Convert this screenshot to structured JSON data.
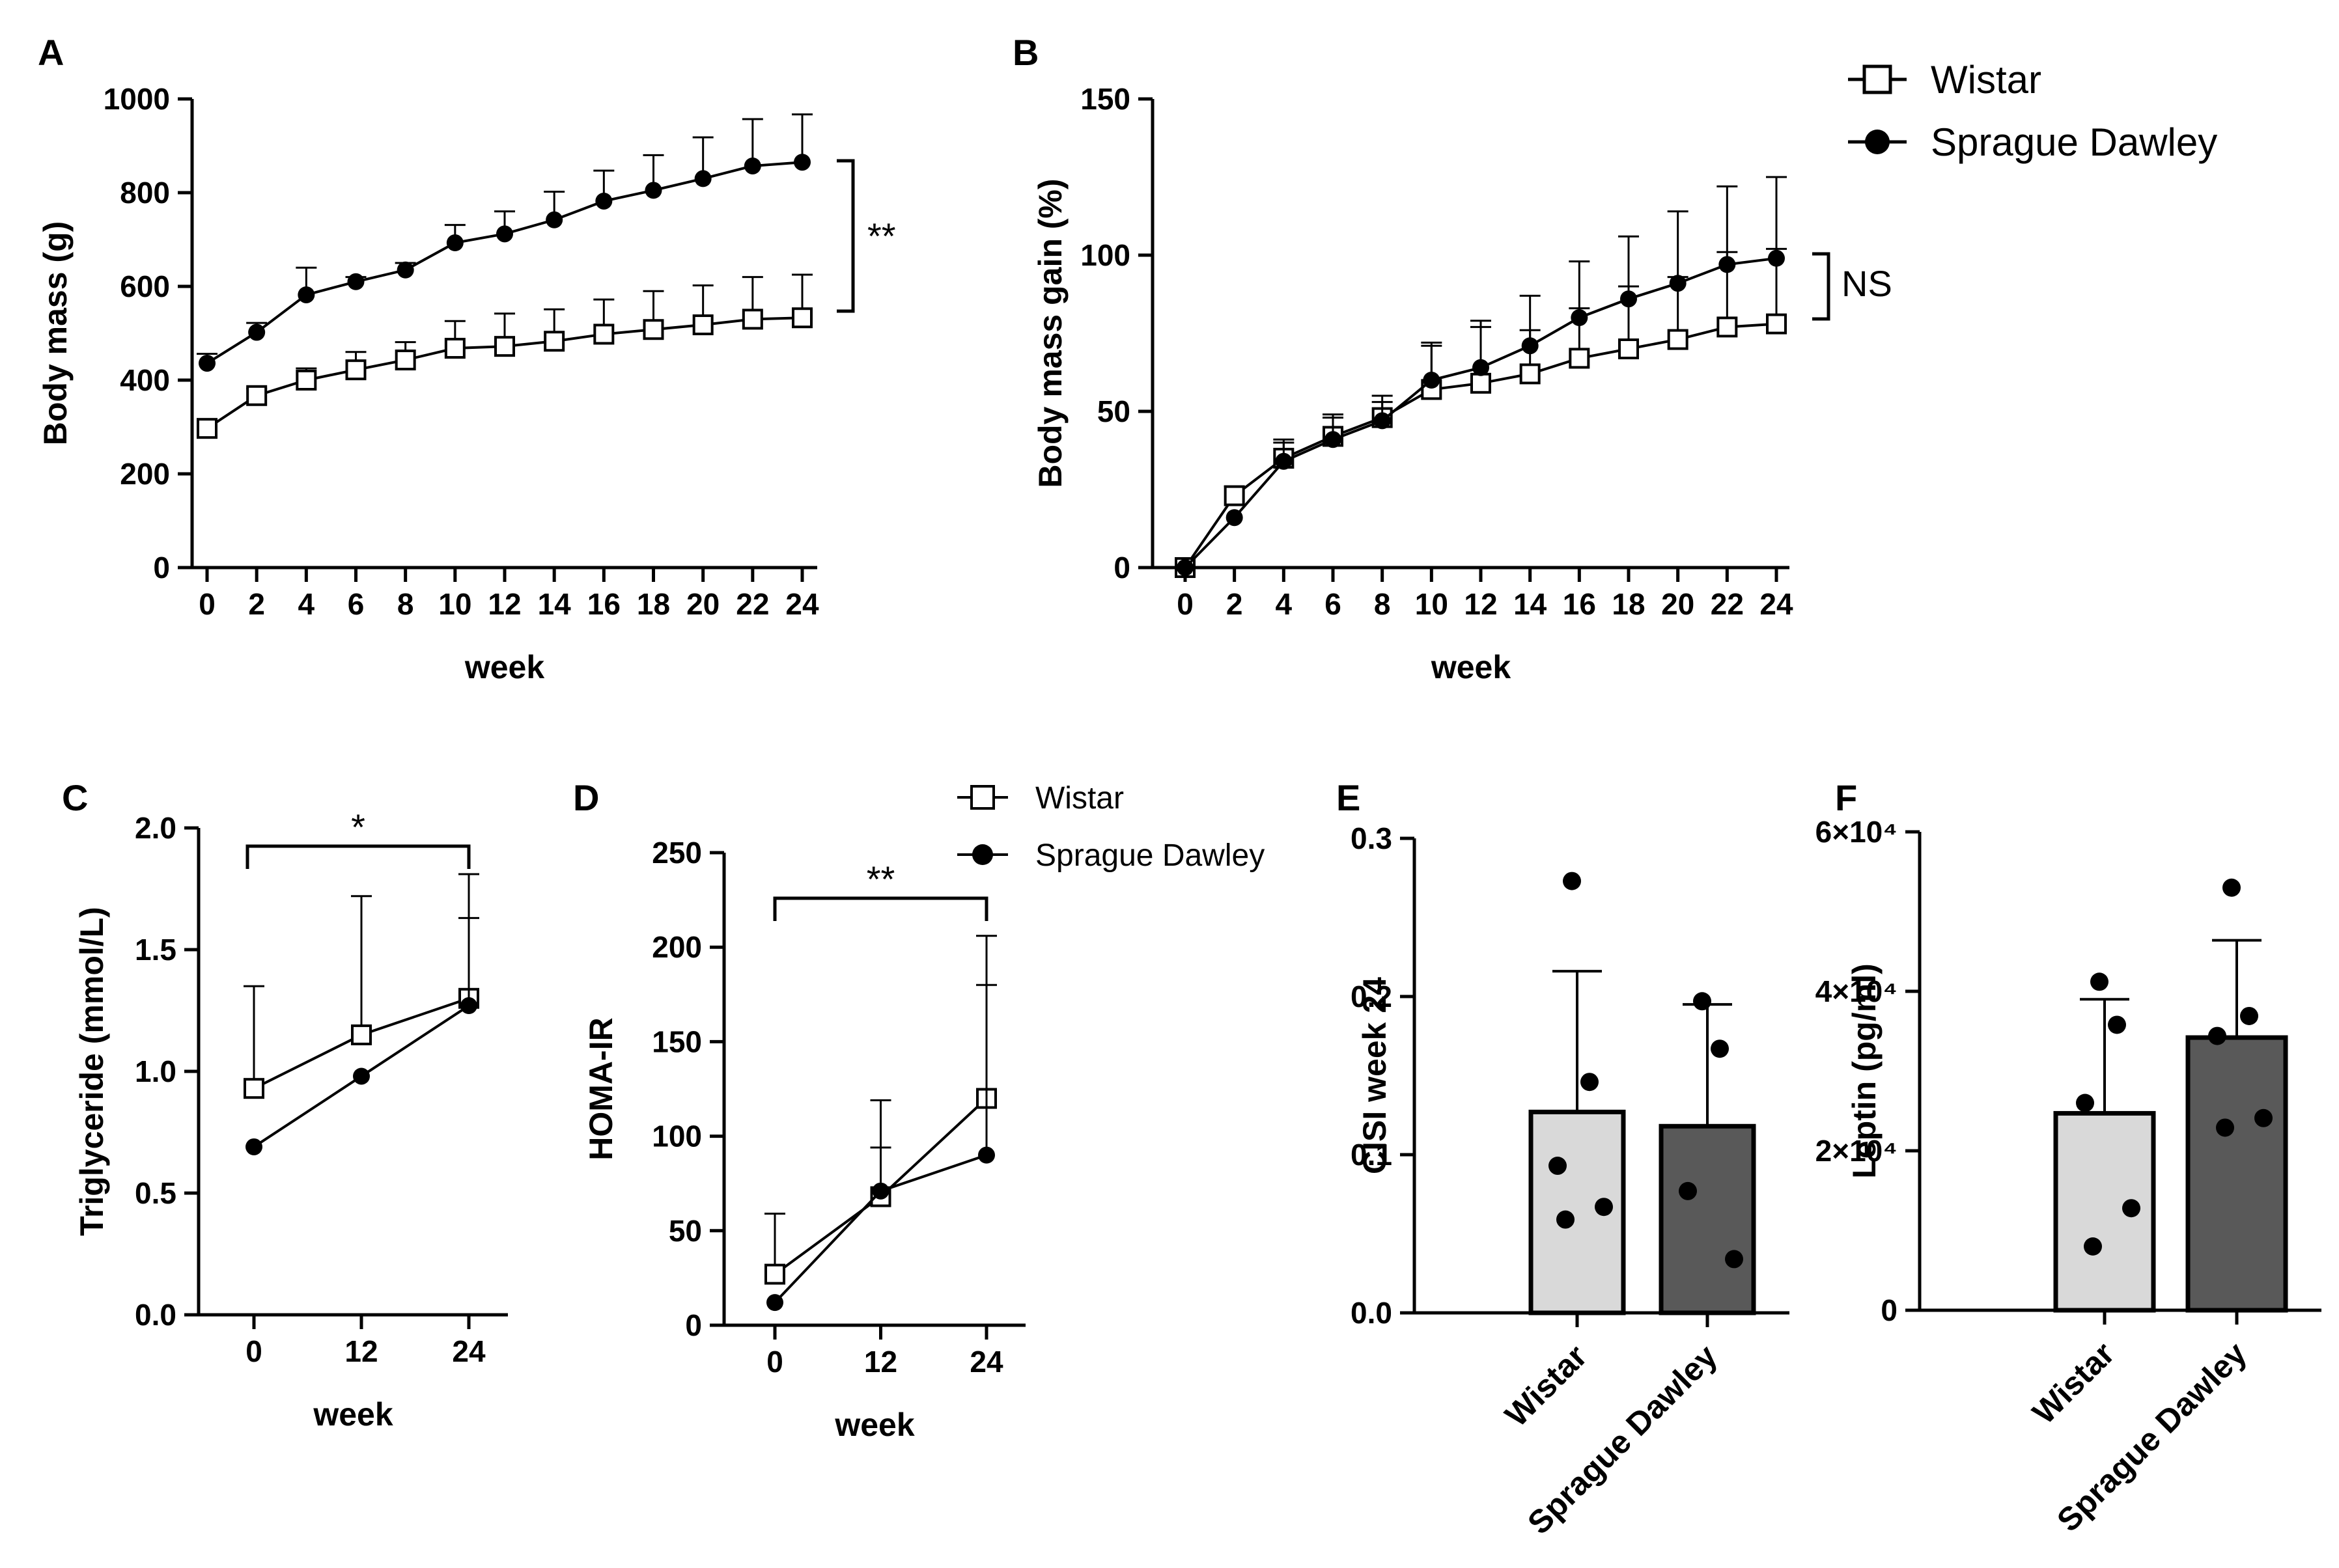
{
  "figure": {
    "background": "#ffffff",
    "ink": "#000000"
  },
  "colors": {
    "wistar_bar": "#d9d9d9",
    "sd_bar": "#595959",
    "marker": "#000000"
  },
  "legend_main": {
    "series": [
      "Wistar",
      "Sprague Dawley"
    ]
  },
  "legend_small": {
    "series": [
      "Wistar",
      "Sprague Dawley"
    ]
  },
  "chart_data": [
    {
      "panel": "A",
      "type": "line",
      "xlabel": "week",
      "ylabel": "Body mass (g)",
      "x": [
        0,
        2,
        4,
        6,
        8,
        10,
        12,
        14,
        16,
        18,
        20,
        22,
        24
      ],
      "xticks": [
        "0",
        "2",
        "4",
        "6",
        "8",
        "10",
        "12",
        "14",
        "16",
        "18",
        "20",
        "22",
        "24"
      ],
      "yticks": [
        "0",
        "200",
        "400",
        "600",
        "800",
        "1000"
      ],
      "ylim": [
        0,
        1000
      ],
      "series": [
        {
          "name": "Wistar",
          "marker": "open-square",
          "values": [
            297,
            367,
            400,
            422,
            443,
            468,
            472,
            483,
            498,
            508,
            518,
            530,
            533
          ],
          "errors": [
            12,
            15,
            25,
            38,
            38,
            58,
            70,
            68,
            74,
            82,
            84,
            90,
            92
          ]
        },
        {
          "name": "Sprague Dawley",
          "marker": "filled-circle",
          "values": [
            436,
            502,
            582,
            610,
            635,
            693,
            712,
            742,
            782,
            805,
            830,
            857,
            865
          ],
          "errors": [
            20,
            20,
            58,
            10,
            15,
            38,
            48,
            60,
            65,
            75,
            88,
            100,
            102
          ]
        }
      ],
      "significance": "**"
    },
    {
      "panel": "B",
      "type": "line",
      "xlabel": "week",
      "ylabel": "Body mass gain (%)",
      "x": [
        0,
        2,
        4,
        6,
        8,
        10,
        12,
        14,
        16,
        18,
        20,
        22,
        24
      ],
      "xticks": [
        "0",
        "2",
        "4",
        "6",
        "8",
        "10",
        "12",
        "14",
        "16",
        "18",
        "20",
        "22",
        "24"
      ],
      "yticks": [
        "0",
        "50",
        "100",
        "150"
      ],
      "ylim": [
        0,
        150
      ],
      "series": [
        {
          "name": "Wistar",
          "marker": "open-square",
          "values": [
            0,
            23,
            35,
            42,
            48,
            57,
            59,
            62,
            67,
            70,
            73,
            77,
            78
          ],
          "errors": [
            0,
            3,
            5,
            6,
            5,
            14,
            18,
            14,
            16,
            20,
            20,
            24,
            24
          ]
        },
        {
          "name": "Sprague Dawley",
          "marker": "filled-circle",
          "values": [
            0,
            16,
            34,
            41,
            47,
            60,
            64,
            71,
            80,
            86,
            91,
            97,
            99
          ],
          "errors": [
            0,
            0,
            7,
            8,
            8,
            12,
            15,
            16,
            18,
            20,
            23,
            25,
            26
          ]
        }
      ],
      "significance": "NS"
    },
    {
      "panel": "C",
      "type": "line",
      "xlabel": "week",
      "ylabel": "Triglyceride (mmol/L)",
      "x": [
        0,
        12,
        24
      ],
      "xticks": [
        "0",
        "12",
        "24"
      ],
      "yticks": [
        "0.0",
        "0.5",
        "1.0",
        "1.5",
        "2.0"
      ],
      "ylim": [
        0,
        2
      ],
      "series": [
        {
          "name": "Wistar",
          "marker": "open-square",
          "values": [
            0.93,
            1.15,
            1.3
          ],
          "errors": [
            0.42,
            0.57,
            0.51
          ]
        },
        {
          "name": "Sprague Dawley",
          "marker": "filled-circle",
          "values": [
            0.69,
            0.98,
            1.27
          ],
          "errors": [
            0,
            0,
            0.36
          ]
        }
      ],
      "significance": "*"
    },
    {
      "panel": "D",
      "type": "line",
      "xlabel": "week",
      "ylabel": "HOMA-IR",
      "x": [
        0,
        12,
        24
      ],
      "xticks": [
        "0",
        "12",
        "24"
      ],
      "yticks": [
        "0",
        "50",
        "100",
        "150",
        "200",
        "250"
      ],
      "ylim": [
        0,
        250
      ],
      "series": [
        {
          "name": "Wistar",
          "marker": "open-square",
          "values": [
            27,
            68,
            120
          ],
          "errors": [
            32,
            51,
            86
          ]
        },
        {
          "name": "Sprague Dawley",
          "marker": "filled-circle",
          "values": [
            12,
            71,
            90
          ],
          "errors": [
            0,
            23,
            90
          ]
        }
      ],
      "significance": "**"
    },
    {
      "panel": "E",
      "type": "bar",
      "ylabel": "CISI week 24",
      "categories": [
        "Wistar",
        "Sprague Dawley"
      ],
      "values": [
        0.127,
        0.118
      ],
      "errors": [
        0.089,
        0.077
      ],
      "points": [
        [
          0.273,
          0.146,
          0.093,
          0.067,
          0.059
        ],
        [
          0.197,
          0.167,
          0.077,
          0.034
        ]
      ],
      "yticks": [
        "0.0",
        "0.1",
        "0.2",
        "0.3"
      ],
      "ylim": [
        0,
        0.3
      ]
    },
    {
      "panel": "F",
      "type": "bar",
      "ylabel": "Leptin (pg/ml)",
      "categories": [
        "Wistar",
        "Sprague Dawley"
      ],
      "values": [
        24700,
        34200
      ],
      "errors": [
        14300,
        12200
      ],
      "points": [
        [
          41200,
          35800,
          26000,
          12800,
          8000
        ],
        [
          53000,
          36900,
          34400,
          24100,
          22900
        ]
      ],
      "yticks": [
        "0",
        "2×10⁴",
        "4×10⁴",
        "6×10⁴"
      ],
      "ylim": [
        0,
        60000
      ]
    }
  ]
}
